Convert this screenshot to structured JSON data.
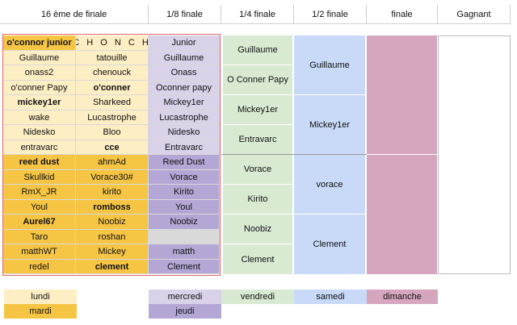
{
  "headers": [
    "16 ème de finale",
    "1/8 finale",
    "1/4 finale",
    "1/2 finale",
    "finale",
    "Gagnant"
  ],
  "round16": [
    {
      "a": "o'connor junior",
      "a_day": "mardi",
      "a_bold": true,
      "b": "C H O N C H",
      "b_day": "lundi",
      "b_spaced": true
    },
    {
      "a": "Guillaume",
      "a_day": "lundi",
      "b": "tatouille",
      "b_day": "lundi"
    },
    {
      "a": "onass2",
      "a_day": "lundi",
      "b": "chenouck",
      "b_day": "lundi"
    },
    {
      "a": "o'conner Papy",
      "a_day": "lundi",
      "b": "o'conner",
      "b_day": "lundi",
      "b_bold": true
    },
    {
      "a": "mickey1er",
      "a_day": "lundi",
      "a_bold": true,
      "b": "Sharkeed",
      "b_day": "lundi"
    },
    {
      "a": "wake",
      "a_day": "lundi",
      "b": "Lucastrophe",
      "b_day": "lundi"
    },
    {
      "a": "Nidesko",
      "a_day": "lundi",
      "b": "Bloo",
      "b_day": "lundi"
    },
    {
      "a": "entravarc",
      "a_day": "lundi",
      "b": "cce",
      "b_day": "lundi",
      "b_bold": true
    },
    {
      "a": "reed dust",
      "a_day": "mardi",
      "a_bold": true,
      "b": "ahmAd",
      "b_day": "mardi"
    },
    {
      "a": "Skullkid",
      "a_day": "mardi",
      "b": "Vorace30#",
      "b_day": "mardi"
    },
    {
      "a": "RmX_JR",
      "a_day": "mardi",
      "b": "kirito",
      "b_day": "mardi"
    },
    {
      "a": "Youl",
      "a_day": "mardi",
      "b": "romboss",
      "b_day": "mardi",
      "b_bold": true
    },
    {
      "a": "Aurel67",
      "a_day": "mardi",
      "a_bold": true,
      "b": "Noobiz",
      "b_day": "mardi"
    },
    {
      "a": "Taro",
      "a_day": "mardi",
      "b": "roshan",
      "b_day": "mardi"
    },
    {
      "a": "matthWT",
      "a_day": "mardi",
      "b": "Mickey",
      "b_day": "mardi"
    },
    {
      "a": "redel",
      "a_day": "mardi",
      "b": "clement",
      "b_day": "mardi",
      "b_bold": true
    }
  ],
  "round8": [
    {
      "name": "Junior",
      "day": "mercredi"
    },
    {
      "name": "Guillaume",
      "day": "mercredi"
    },
    {
      "name": "Onass",
      "day": "mercredi"
    },
    {
      "name": "Oconner papy",
      "day": "mercredi"
    },
    {
      "name": "Mickey1er",
      "day": "mercredi"
    },
    {
      "name": "Lucastrophe",
      "day": "mercredi"
    },
    {
      "name": "Nidesko",
      "day": "mercredi"
    },
    {
      "name": "Entravarc",
      "day": "mercredi"
    },
    {
      "name": "Reed Dust",
      "day": "jeudi"
    },
    {
      "name": "Vorace",
      "day": "jeudi"
    },
    {
      "name": "Kirito",
      "day": "jeudi"
    },
    {
      "name": "Youl",
      "day": "jeudi"
    },
    {
      "name": "Noobiz",
      "day": "jeudi"
    },
    {
      "name": "",
      "day": "grey"
    },
    {
      "name": "matth",
      "day": "jeudi"
    },
    {
      "name": "Clement",
      "day": "jeudi"
    }
  ],
  "quarter": [
    "Guillaume",
    "O Conner Papy",
    "Mickey1er",
    "Entravarc",
    "Vorace",
    "Kirito",
    "Noobiz",
    "Clement"
  ],
  "semi": [
    "Guillaume",
    "Mickey1er",
    "vorace",
    "Clement"
  ],
  "final": [
    "",
    ""
  ],
  "winner": "",
  "legend": {
    "lundi": "lundi",
    "mardi": "mardi",
    "mercredi": "mercredi",
    "jeudi": "jeudi",
    "vendredi": "vendredi",
    "samedi": "samedi",
    "dimanche": "dimanche"
  },
  "colors": {
    "lundi": "#fdeec4",
    "mardi": "#f6c544",
    "mercredi": "#d9d2e9",
    "jeudi": "#b4a7d6",
    "vendredi": "#d9ead3",
    "samedi": "#c9daf8",
    "dimanche": "#d5a6bd"
  }
}
